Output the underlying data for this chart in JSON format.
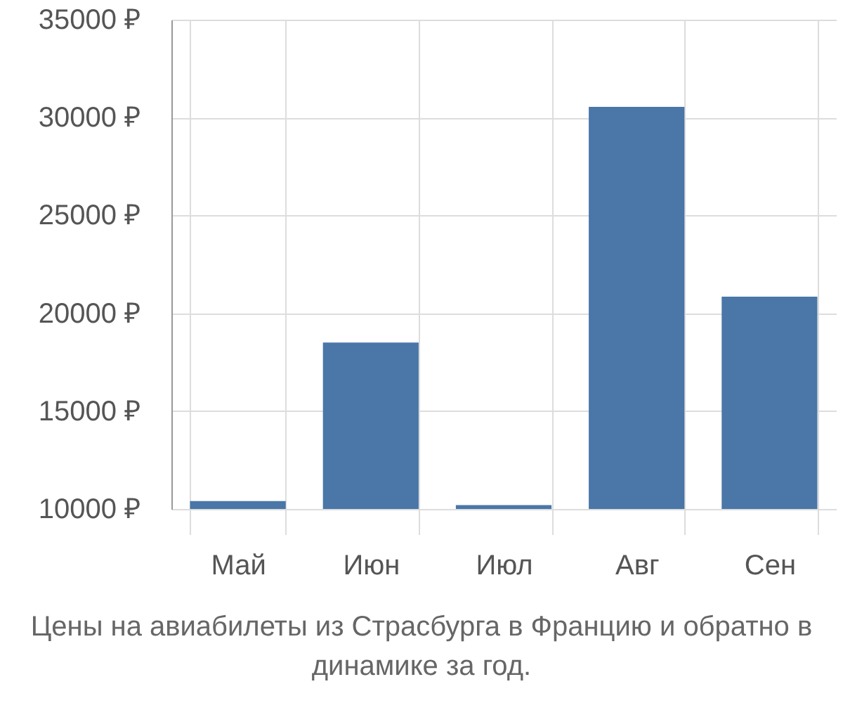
{
  "chart_data": {
    "type": "bar",
    "categories": [
      "Май",
      "Июн",
      "Июл",
      "Авг",
      "Сен"
    ],
    "values": [
      10400,
      18500,
      10200,
      30550,
      20850
    ],
    "color": "#4a76a8",
    "ylim": [
      10000,
      35000
    ],
    "yticks": [
      {
        "value": 10000,
        "label": "10000 ₽"
      },
      {
        "value": 15000,
        "label": "15000 ₽"
      },
      {
        "value": 20000,
        "label": "20000 ₽"
      },
      {
        "value": 25000,
        "label": "25000 ₽"
      },
      {
        "value": 30000,
        "label": "30000 ₽"
      },
      {
        "value": 35000,
        "label": "35000 ₽"
      }
    ],
    "grid": true,
    "annotations": [
      "Цены на авиабилеты из Страсбурга в Францию и обратно в динамике за год."
    ]
  }
}
